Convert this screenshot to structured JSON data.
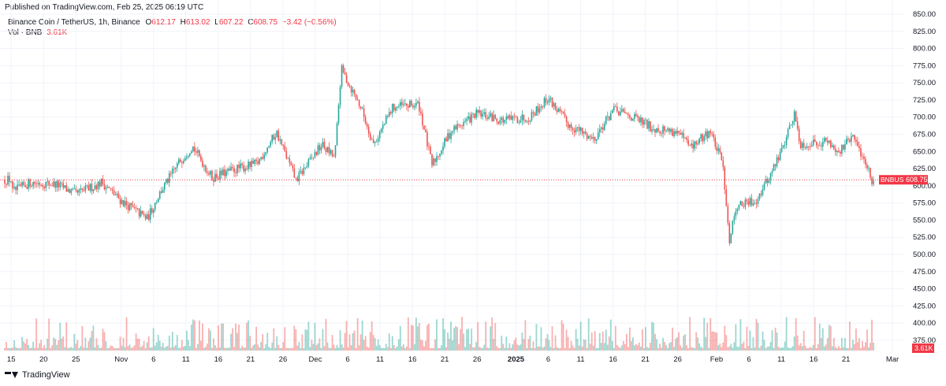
{
  "published": "Published on TradingView.com, Feb 25, 2025 06:19 UTC",
  "legend": {
    "symbol": "Binance Coin / TetherUS, 1h, Binance",
    "o_label": "O",
    "o_value": "612.17",
    "h_label": "H",
    "h_value": "613.02",
    "l_label": "L",
    "l_value": "607.22",
    "c_label": "C",
    "c_value": "608.75",
    "change": "−3.42 (−0.56%)",
    "vol_label": "Vol · BNB",
    "vol_value": "3.61K"
  },
  "footer": {
    "brand": "TradingView"
  },
  "colors": {
    "up": "#26a69a",
    "down": "#ef5350",
    "grid": "#f0f3fa",
    "price_line": "#f23645"
  },
  "chart_data": {
    "type": "candlestick",
    "interval": "1h",
    "symbol_tag": "BNBUSDT",
    "last_price": 608.75,
    "last_price_label": "608.75",
    "last_volume_label": "3.61K",
    "y_range": [
      360,
      850
    ],
    "y_ticks": [
      "375.00",
      "400.00",
      "425.00",
      "450.00",
      "475.00",
      "500.00",
      "525.00",
      "550.00",
      "575.00",
      "600.00",
      "625.00",
      "650.00",
      "675.00",
      "700.00",
      "725.00",
      "750.00",
      "775.00",
      "800.00",
      "825.00",
      "850.00"
    ],
    "x_ticks": [
      "15",
      "20",
      "25",
      "Nov",
      "6",
      "11",
      "16",
      "21",
      "26",
      "Dec",
      "6",
      "11",
      "16",
      "21",
      "26",
      "2025",
      "6",
      "11",
      "16",
      "21",
      "26",
      "Feb",
      "6",
      "11",
      "16",
      "21",
      "Mar"
    ],
    "close_path": [
      {
        "date": "2024-10-15",
        "close": 590
      },
      {
        "date": "2024-10-18",
        "close": 605
      },
      {
        "date": "2024-10-22",
        "close": 602
      },
      {
        "date": "2024-10-25",
        "close": 588
      },
      {
        "date": "2024-10-29",
        "close": 605
      },
      {
        "date": "2024-11-01",
        "close": 578
      },
      {
        "date": "2024-11-05",
        "close": 552
      },
      {
        "date": "2024-11-07",
        "close": 590
      },
      {
        "date": "2024-11-10",
        "close": 635
      },
      {
        "date": "2024-11-12",
        "close": 658
      },
      {
        "date": "2024-11-15",
        "close": 612
      },
      {
        "date": "2024-11-19",
        "close": 625
      },
      {
        "date": "2024-11-22",
        "close": 632
      },
      {
        "date": "2024-11-25",
        "close": 678
      },
      {
        "date": "2024-11-28",
        "close": 608
      },
      {
        "date": "2024-12-02",
        "close": 660
      },
      {
        "date": "2024-12-04",
        "close": 640
      },
      {
        "date": "2024-12-05",
        "close": 770
      },
      {
        "date": "2024-12-08",
        "close": 715
      },
      {
        "date": "2024-12-10",
        "close": 660
      },
      {
        "date": "2024-12-13",
        "close": 715
      },
      {
        "date": "2024-12-17",
        "close": 718
      },
      {
        "date": "2024-12-19",
        "close": 630
      },
      {
        "date": "2024-12-22",
        "close": 680
      },
      {
        "date": "2024-12-26",
        "close": 705
      },
      {
        "date": "2024-12-30",
        "close": 695
      },
      {
        "date": "2025-01-03",
        "close": 700
      },
      {
        "date": "2025-01-06",
        "close": 728
      },
      {
        "date": "2025-01-09",
        "close": 690
      },
      {
        "date": "2025-01-13",
        "close": 668
      },
      {
        "date": "2025-01-16",
        "close": 710
      },
      {
        "date": "2025-01-19",
        "close": 700
      },
      {
        "date": "2025-01-22",
        "close": 685
      },
      {
        "date": "2025-01-26",
        "close": 678
      },
      {
        "date": "2025-01-28",
        "close": 655
      },
      {
        "date": "2025-01-31",
        "close": 680
      },
      {
        "date": "2025-02-02",
        "close": 630
      },
      {
        "date": "2025-02-03",
        "close": 520
      },
      {
        "date": "2025-02-04",
        "close": 570
      },
      {
        "date": "2025-02-07",
        "close": 578
      },
      {
        "date": "2025-02-09",
        "close": 610
      },
      {
        "date": "2025-02-11",
        "close": 650
      },
      {
        "date": "2025-02-13",
        "close": 705
      },
      {
        "date": "2025-02-14",
        "close": 660
      },
      {
        "date": "2025-02-18",
        "close": 665
      },
      {
        "date": "2025-02-20",
        "close": 650
      },
      {
        "date": "2025-02-22",
        "close": 672
      },
      {
        "date": "2025-02-24",
        "close": 635
      },
      {
        "date": "2025-02-25",
        "close": 608.75
      }
    ]
  }
}
